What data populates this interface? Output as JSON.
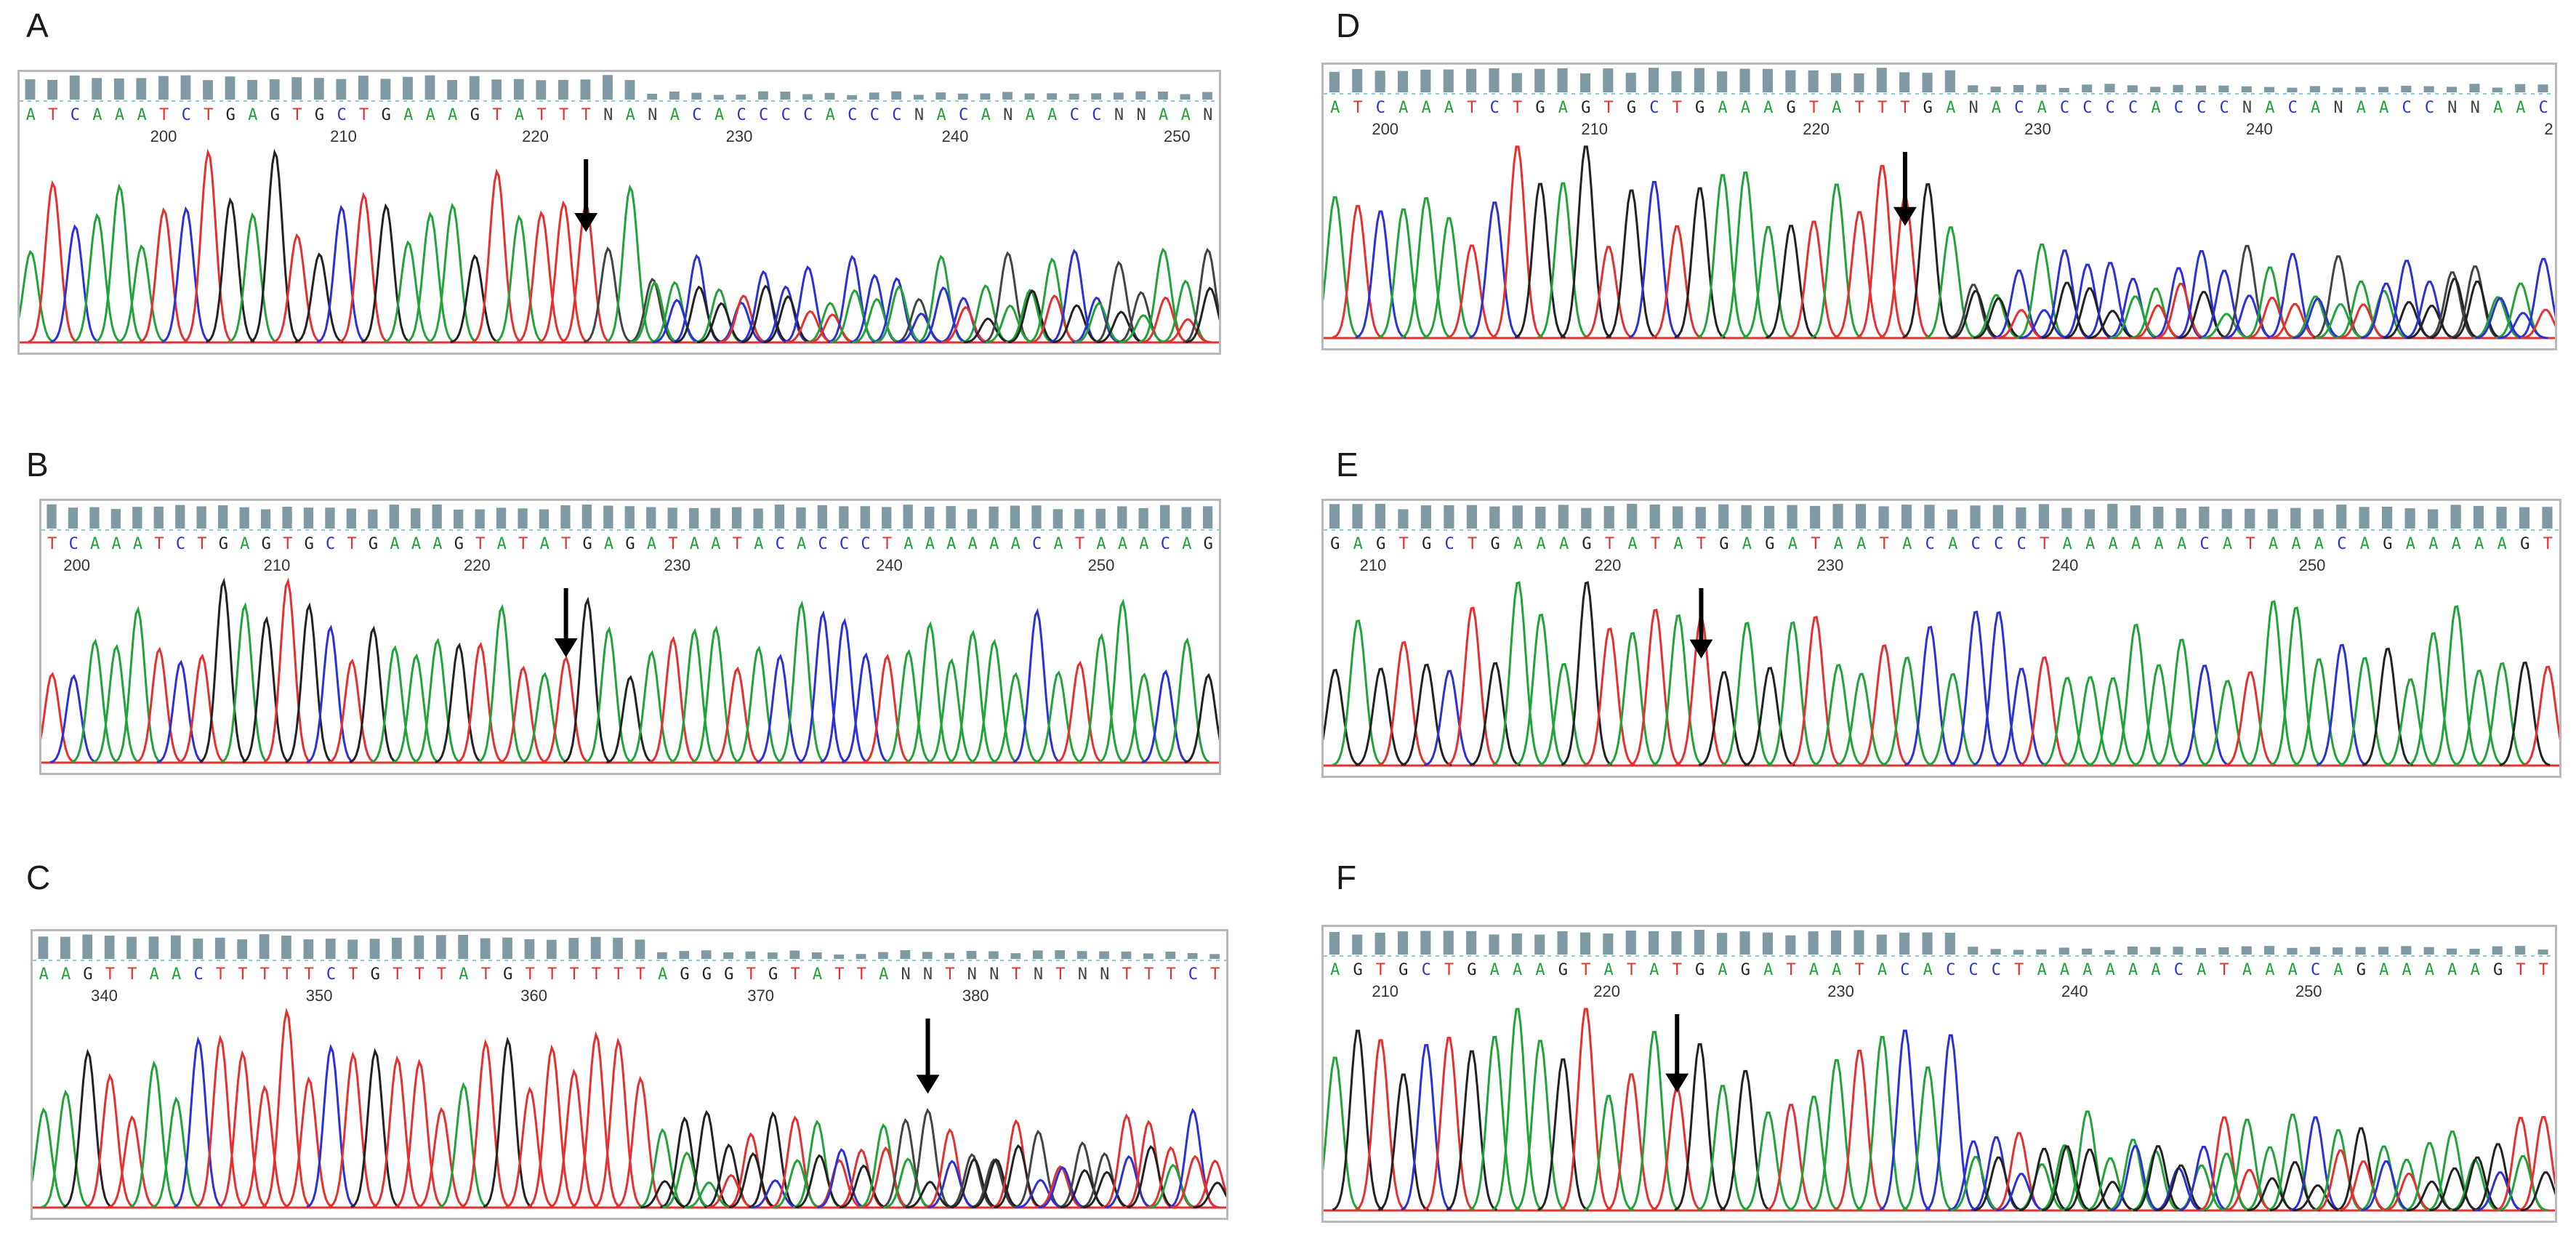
{
  "colors": {
    "A": "#22a33a",
    "C": "#2b31d6",
    "G": "#222222",
    "T": "#e53030",
    "N": "#444444",
    "qual": "#7f9aa3",
    "baseline": "#e53030",
    "arrow": "#000000"
  },
  "panels": [
    {
      "id": "A",
      "label": "A",
      "sequence": "ATCAAATCTGAGTGCTGAAAGTATTTNANACACCCCACCCNACANAACCNNAAN",
      "positions": [
        "200",
        "210",
        "220",
        "230",
        "240",
        "250"
      ],
      "quality": "high-then-low"
    },
    {
      "id": "B",
      "label": "B",
      "sequence": "TCAAATCTGAGTGCTGAAAGTATATGAGATAATACACCCTAAAAAACATAAACAG",
      "positions": [
        "200",
        "210",
        "220",
        "230",
        "240",
        "250"
      ],
      "quality": "high"
    },
    {
      "id": "C",
      "label": "C",
      "sequence": "AAGTTAACTTTTTCTGTTTATGTTTTTTAGGGTGTATTANNTNNTNTNNTTTCT",
      "positions": [
        "340",
        "350",
        "360",
        "370",
        "380"
      ],
      "quality": "high-then-low"
    },
    {
      "id": "D",
      "label": "D",
      "sequence": "ATCAAATCTGAGTGCTGAAAGTATTTGANACACCCCACCCNACANAACCNNAAC",
      "positions": [
        "200",
        "210",
        "220",
        "230",
        "240",
        "2"
      ],
      "quality": "high-then-low"
    },
    {
      "id": "E",
      "label": "E",
      "sequence": "GAGTGCTGAAAGTATATGAGATAATACACCCTAAAAAACATAAACAGAAAAAGT",
      "positions": [
        "210",
        "220",
        "230",
        "240",
        "250"
      ],
      "quality": "high"
    },
    {
      "id": "F",
      "label": "F",
      "sequence": "AGTGCTGAAAGTATATGAGATAATACACCCTAAAAAACATAAACAGAAAAAGTT",
      "positions": [
        "210",
        "220",
        "230",
        "240",
        "250"
      ],
      "quality": "high-then-low"
    }
  ]
}
